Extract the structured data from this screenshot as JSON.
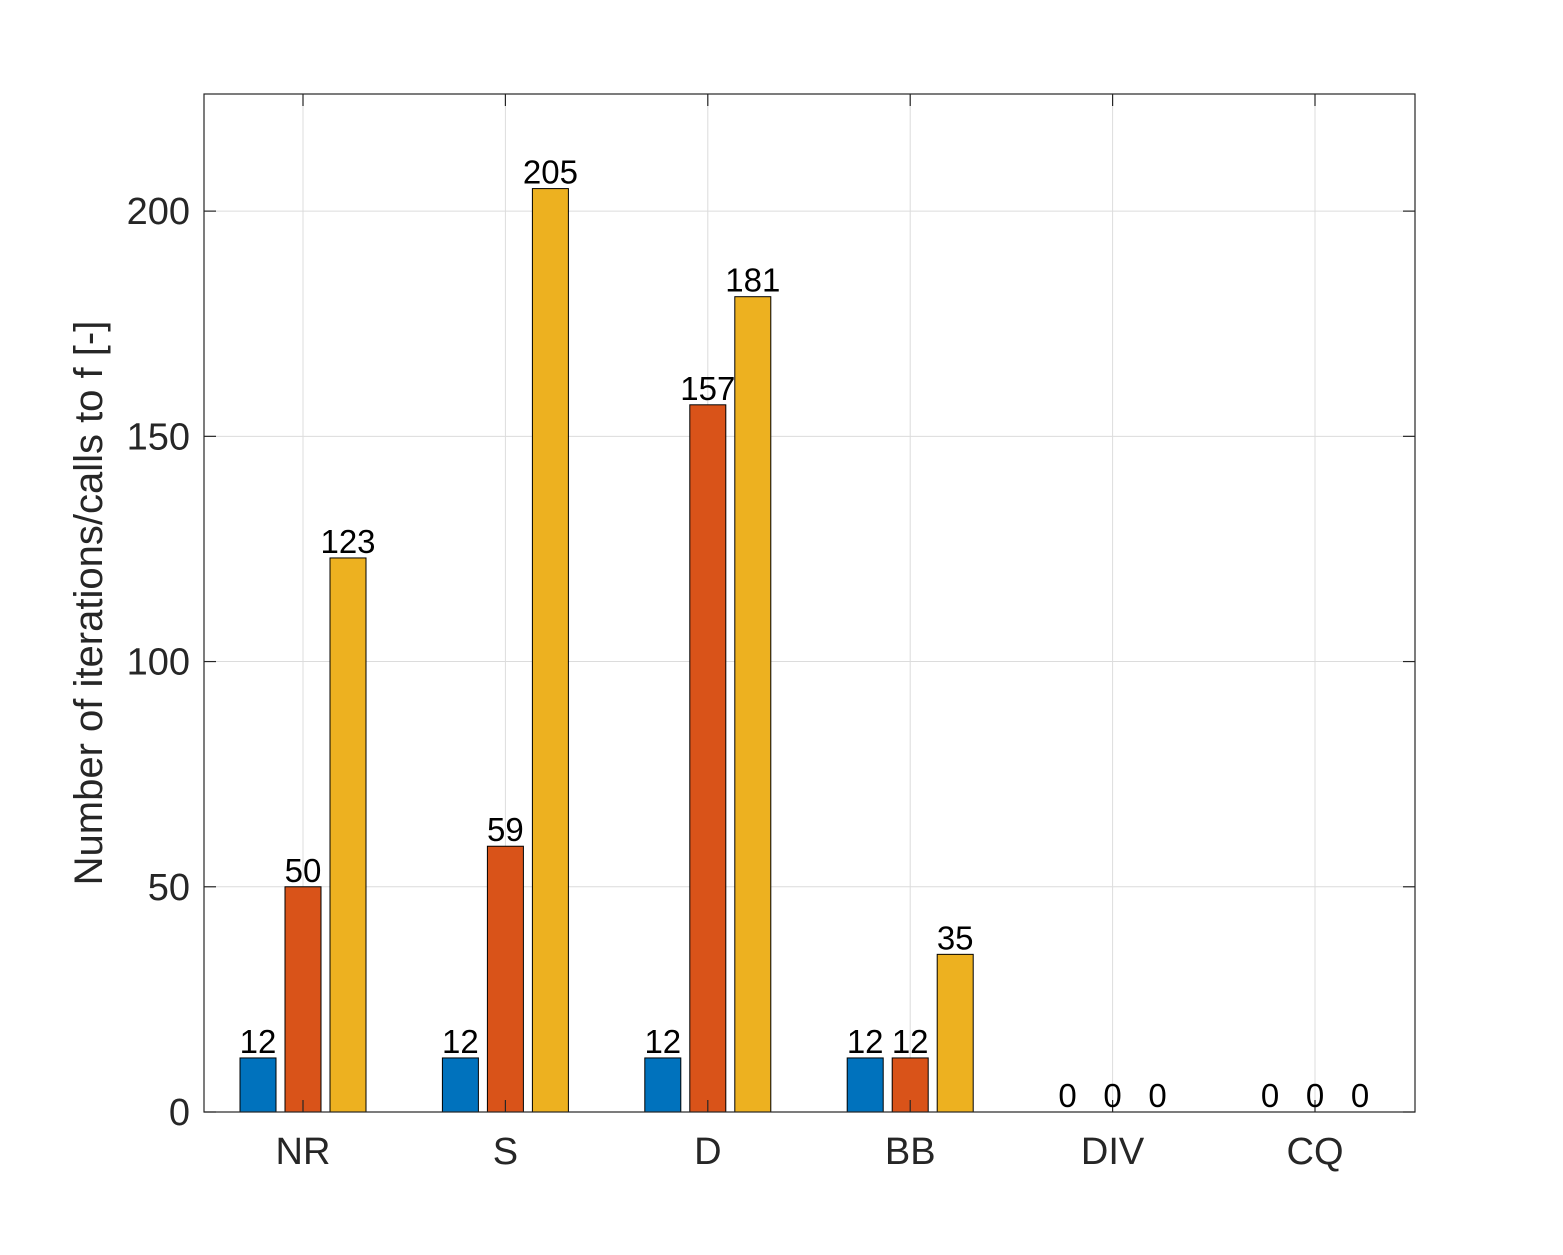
{
  "chart_data": {
    "type": "bar",
    "title": "",
    "xlabel": "",
    "ylabel": "Number of iterations/calls to f [-]",
    "categories": [
      "NR",
      "S",
      "D",
      "BB",
      "DIV",
      "CQ"
    ],
    "series": [
      {
        "values": [
          12,
          12,
          12,
          12,
          0,
          0
        ],
        "color": "#0072BD"
      },
      {
        "values": [
          50,
          59,
          157,
          12,
          0,
          0
        ],
        "color": "#D95319"
      },
      {
        "values": [
          123,
          205,
          181,
          35,
          0,
          0
        ],
        "color": "#EDB120"
      }
    ],
    "ylim": [
      0,
      226
    ],
    "yticks": [
      0,
      50,
      100,
      150,
      200
    ],
    "grid": true,
    "data_labels": true
  }
}
